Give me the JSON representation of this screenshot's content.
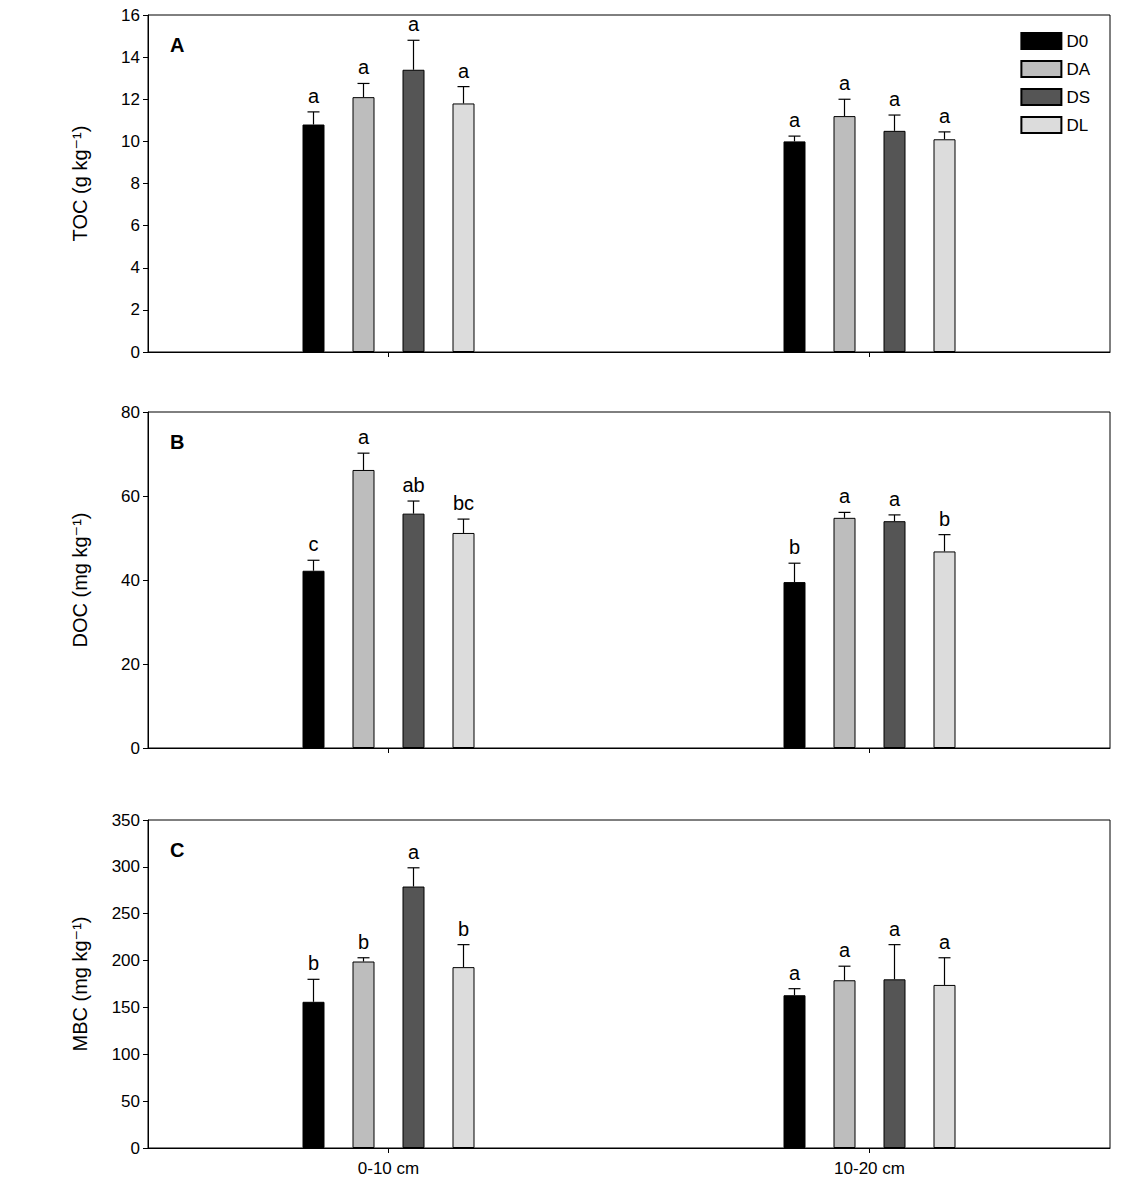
{
  "chart_data": [
    {
      "type": "bar",
      "title": "A",
      "ylabel": "TOC (g kg⁻¹)",
      "categories": [
        "0-10 cm",
        "10-20 cm"
      ],
      "ylim": [
        0,
        16
      ],
      "yticks": [
        0,
        2,
        4,
        6,
        8,
        10,
        12,
        14,
        16
      ],
      "legend": "upper right",
      "tick_labels": "y",
      "series": [
        {
          "name": "D0",
          "color": "#000000",
          "values": [
            10.8,
            10.0
          ],
          "errors": [
            0.6,
            0.25
          ],
          "letters": [
            "a",
            "a"
          ]
        },
        {
          "name": "DA",
          "color": "#bdbdbd",
          "values": [
            12.1,
            11.2
          ],
          "errors": [
            0.65,
            0.8
          ],
          "letters": [
            "a",
            "a"
          ]
        },
        {
          "name": "DS",
          "color": "#555555",
          "values": [
            13.4,
            10.5
          ],
          "errors": [
            1.4,
            0.75
          ],
          "letters": [
            "a",
            "a"
          ]
        },
        {
          "name": "DL",
          "color": "#dcdcdc",
          "values": [
            11.8,
            10.1
          ],
          "errors": [
            0.8,
            0.35
          ],
          "letters": [
            "a",
            "a"
          ]
        }
      ]
    },
    {
      "type": "bar",
      "title": "B",
      "ylabel": "DOC (mg kg⁻¹)",
      "categories": [
        "0-10 cm",
        "10-20 cm"
      ],
      "ylim": [
        0,
        80
      ],
      "yticks": [
        0,
        20,
        40,
        60,
        80
      ],
      "tick_labels": "y",
      "series": [
        {
          "name": "D0",
          "color": "#000000",
          "values": [
            42.2,
            39.5
          ],
          "errors": [
            2.5,
            4.5
          ],
          "letters": [
            "c",
            "b"
          ]
        },
        {
          "name": "DA",
          "color": "#bdbdbd",
          "values": [
            66.2,
            54.8
          ],
          "errors": [
            4.0,
            1.3
          ],
          "letters": [
            "a",
            "a"
          ]
        },
        {
          "name": "DS",
          "color": "#555555",
          "values": [
            55.8,
            54.0
          ],
          "errors": [
            3.0,
            1.5
          ],
          "letters": [
            "ab",
            "a"
          ]
        },
        {
          "name": "DL",
          "color": "#dcdcdc",
          "values": [
            51.2,
            46.8
          ],
          "errors": [
            3.3,
            4.0
          ],
          "letters": [
            "bc",
            "b"
          ]
        }
      ]
    },
    {
      "type": "bar",
      "title": "C",
      "ylabel": "MBC (mg kg⁻¹)",
      "categories": [
        "0-10 cm",
        "10-20 cm"
      ],
      "ylim": [
        0,
        350
      ],
      "yticks": [
        0,
        50,
        100,
        150,
        200,
        250,
        300,
        350
      ],
      "series": [
        {
          "name": "D0",
          "color": "#000000",
          "values": [
            156,
            163
          ],
          "errors": [
            24,
            7
          ],
          "letters": [
            "b",
            "a"
          ]
        },
        {
          "name": "DA",
          "color": "#bdbdbd",
          "values": [
            199,
            179
          ],
          "errors": [
            4,
            15
          ],
          "letters": [
            "b",
            "a"
          ]
        },
        {
          "name": "DS",
          "color": "#555555",
          "values": [
            279,
            180
          ],
          "errors": [
            20,
            37
          ],
          "letters": [
            "a",
            "a"
          ]
        },
        {
          "name": "DL",
          "color": "#dcdcdc",
          "values": [
            193,
            174
          ],
          "errors": [
            24,
            29
          ],
          "letters": [
            "b",
            "a"
          ]
        }
      ]
    }
  ]
}
